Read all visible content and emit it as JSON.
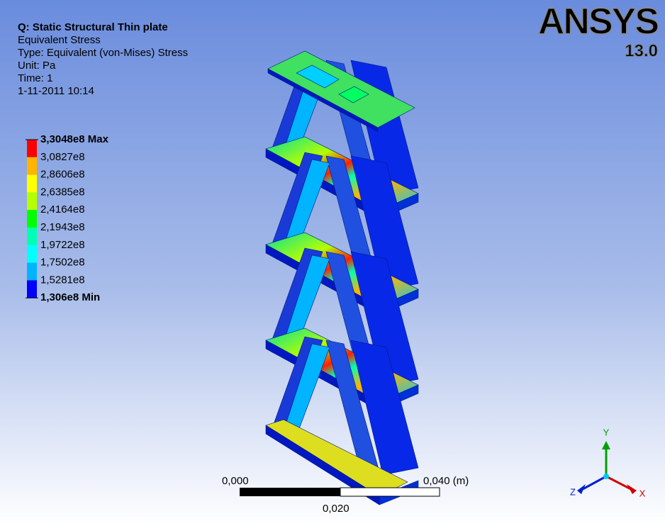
{
  "header": {
    "title": "Q: Static Structural Thin plate",
    "lines": [
      "Equivalent Stress",
      "Type: Equivalent (von-Mises) Stress",
      "Unit: Pa",
      "Time: 1",
      "1-11-2011 10:14"
    ]
  },
  "legend": {
    "labels": [
      "3,3048e8 Max",
      "3,0827e8",
      "2,8606e8",
      "2,6385e8",
      "2,4164e8",
      "2,1943e8",
      "1,9722e8",
      "1,7502e8",
      "1,5281e8",
      "1,306e8 Min"
    ],
    "colors": [
      "#ff0000",
      "#ffb400",
      "#ffff00",
      "#b4ff00",
      "#00ff00",
      "#00ffb4",
      "#00ffff",
      "#00b4ff",
      "#0000ff"
    ]
  },
  "logo": {
    "name": "ANSYS",
    "version": "13.0"
  },
  "scale_bar": {
    "left": "0,000",
    "middle": "0,020",
    "right": "0,040 (m)"
  },
  "triad": {
    "x": "X",
    "y": "Y",
    "z": "Z"
  }
}
